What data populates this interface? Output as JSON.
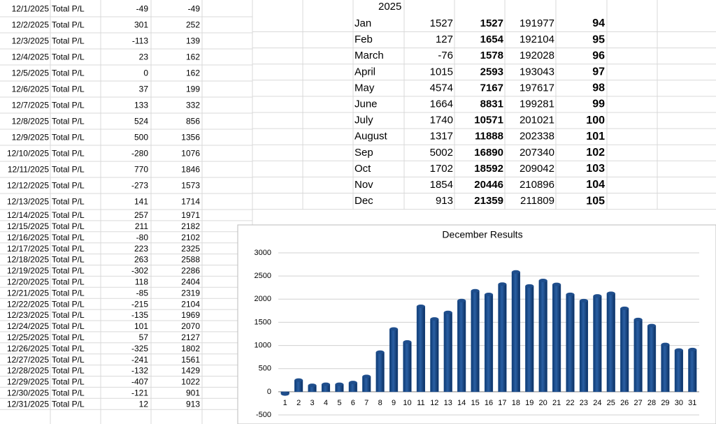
{
  "daily": {
    "alert_color": "#d42a2a",
    "alert_rows": [
      25,
      26,
      27,
      28,
      29
    ],
    "rows": [
      [
        "12/1/2025",
        "Total P/L",
        -49,
        -49
      ],
      [
        "12/2/2025",
        "Total P/L",
        301,
        252
      ],
      [
        "12/3/2025",
        "Total P/L",
        -113,
        139
      ],
      [
        "12/4/2025",
        "Total P/L",
        23,
        162
      ],
      [
        "12/5/2025",
        "Total P/L",
        0,
        162
      ],
      [
        "12/6/2025",
        "Total P/L",
        37,
        199
      ],
      [
        "12/7/2025",
        "Total P/L",
        133,
        332
      ],
      [
        "12/8/2025",
        "Total P/L",
        524,
        856
      ],
      [
        "12/9/2025",
        "Total P/L",
        500,
        1356
      ],
      [
        "12/10/2025",
        "Total P/L",
        -280,
        1076
      ],
      [
        "12/11/2025",
        "Total P/L",
        770,
        1846
      ],
      [
        "12/12/2025",
        "Total P/L",
        -273,
        1573
      ],
      [
        "12/13/2025",
        "Total P/L",
        141,
        1714
      ],
      [
        "12/14/2025",
        "Total P/L",
        257,
        1971
      ],
      [
        "12/15/2025",
        "Total P/L",
        211,
        2182
      ],
      [
        "12/16/2025",
        "Total P/L",
        -80,
        2102
      ],
      [
        "12/17/2025",
        "Total P/L",
        223,
        2325
      ],
      [
        "12/18/2025",
        "Total P/L",
        263,
        2588
      ],
      [
        "12/19/2025",
        "Total P/L",
        -302,
        2286
      ],
      [
        "12/20/2025",
        "Total P/L",
        118,
        2404
      ],
      [
        "12/21/2025",
        "Total P/L",
        -85,
        2319
      ],
      [
        "12/22/2025",
        "Total P/L",
        -215,
        2104
      ],
      [
        "12/23/2025",
        "Total P/L",
        -135,
        1969
      ],
      [
        "12/24/2025",
        "Total P/L",
        101,
        2070
      ],
      [
        "12/25/2025",
        "Total P/L",
        57,
        2127
      ],
      [
        "12/26/2025",
        "Total P/L",
        -325,
        1802
      ],
      [
        "12/27/2025",
        "Total P/L",
        -241,
        1561
      ],
      [
        "12/28/2025",
        "Total P/L",
        -132,
        1429
      ],
      [
        "12/29/2025",
        "Total P/L",
        -407,
        1022
      ],
      [
        "12/30/2025",
        "Total P/L",
        -121,
        901
      ],
      [
        "12/31/2025",
        "Total P/L",
        12,
        913
      ]
    ]
  },
  "monthly": {
    "year": "2025",
    "value_color": "#2e9a3e",
    "negative_color": "#d42a2a",
    "cumulative_color": "#2e9a3e",
    "rows": [
      [
        "Jan",
        1527,
        1527,
        191977,
        94
      ],
      [
        "Feb",
        127,
        1654,
        192104,
        95
      ],
      [
        "March",
        -76,
        1578,
        192028,
        96
      ],
      [
        "April",
        1015,
        2593,
        193043,
        97
      ],
      [
        "May",
        4574,
        7167,
        197617,
        98
      ],
      [
        "June",
        1664,
        8831,
        199281,
        99
      ],
      [
        "July",
        1740,
        10571,
        201021,
        100
      ],
      [
        "August",
        1317,
        11888,
        202338,
        101
      ],
      [
        "Sep",
        5002,
        16890,
        207340,
        102
      ],
      [
        "Oct",
        1702,
        18592,
        209042,
        103
      ],
      [
        "Nov",
        1854,
        20446,
        210896,
        104
      ],
      [
        "Dec",
        913,
        21359,
        211809,
        105
      ]
    ]
  },
  "chart_data": {
    "type": "bar",
    "title": "December Results",
    "color": "#1f4e8c",
    "grid": true,
    "categories": [
      "1",
      "2",
      "3",
      "4",
      "5",
      "6",
      "7",
      "8",
      "9",
      "10",
      "11",
      "12",
      "13",
      "14",
      "15",
      "16",
      "17",
      "18",
      "19",
      "20",
      "21",
      "22",
      "23",
      "24",
      "25",
      "26",
      "27",
      "28",
      "29",
      "30",
      "31"
    ],
    "values": [
      -49,
      252,
      139,
      162,
      162,
      199,
      332,
      856,
      1356,
      1076,
      1846,
      1573,
      1714,
      1971,
      2182,
      2102,
      2325,
      2588,
      2286,
      2404,
      2319,
      2104,
      1969,
      2070,
      2127,
      1802,
      1561,
      1429,
      1022,
      901,
      913
    ],
    "ylim": [
      -500,
      3000
    ],
    "yticks": [
      -500,
      0,
      500,
      1000,
      1500,
      2000,
      2500,
      3000
    ]
  }
}
